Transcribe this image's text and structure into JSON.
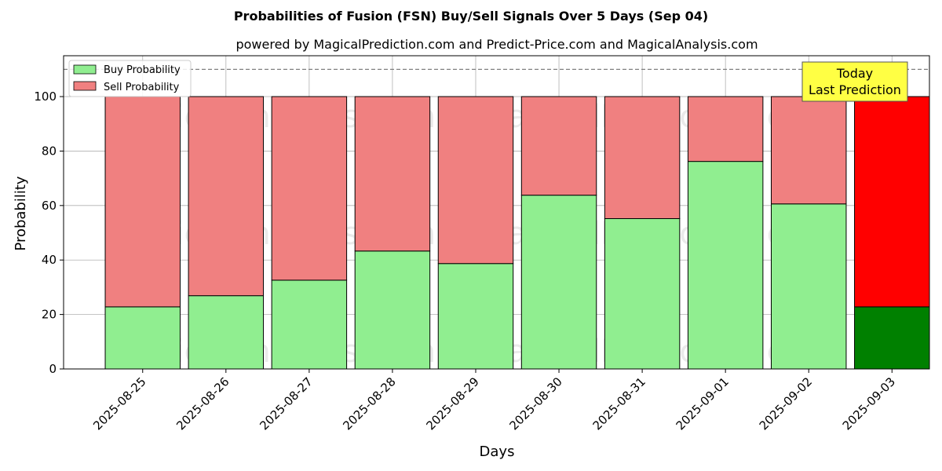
{
  "chart_data": {
    "type": "bar",
    "stacked": true,
    "title": "Probabilities of Fusion (FSN) Buy/Sell Signals Over 5 Days (Sep 04)",
    "subtitle": "powered by MagicalPrediction.com and Predict-Price.com and MagicalAnalysis.com",
    "xlabel": "Days",
    "ylabel": "Probability",
    "ylim": [
      0,
      115
    ],
    "yticks": [
      0,
      20,
      40,
      60,
      80,
      100
    ],
    "categories": [
      "2025-08-25",
      "2025-08-26",
      "2025-08-27",
      "2025-08-28",
      "2025-08-29",
      "2025-08-30",
      "2025-08-31",
      "2025-09-01",
      "2025-09-02",
      "2025-09-03"
    ],
    "series": [
      {
        "name": "Buy Probability",
        "values": [
          22.8,
          26.9,
          32.6,
          43.3,
          38.7,
          63.8,
          55.2,
          76.2,
          60.6,
          22.8
        ],
        "color": "#90ee90",
        "highlight_color": "#008000"
      },
      {
        "name": "Sell Probability",
        "values": [
          77.2,
          73.1,
          67.4,
          56.7,
          61.3,
          36.2,
          44.8,
          23.8,
          39.4,
          77.2
        ],
        "color": "#f08080",
        "highlight_color": "#ff0000"
      }
    ],
    "highlight_index": 9,
    "reference_line": {
      "y": 110,
      "style": "dashed",
      "color": "#808080"
    },
    "annotation": {
      "lines": [
        "Today",
        "Last Prediction"
      ],
      "background": "#ffff44"
    },
    "legend": {
      "position": "top-left"
    },
    "grid": true,
    "watermarks": [
      "MagicalAnalysis.com",
      "MagicalPrediction.com"
    ]
  }
}
